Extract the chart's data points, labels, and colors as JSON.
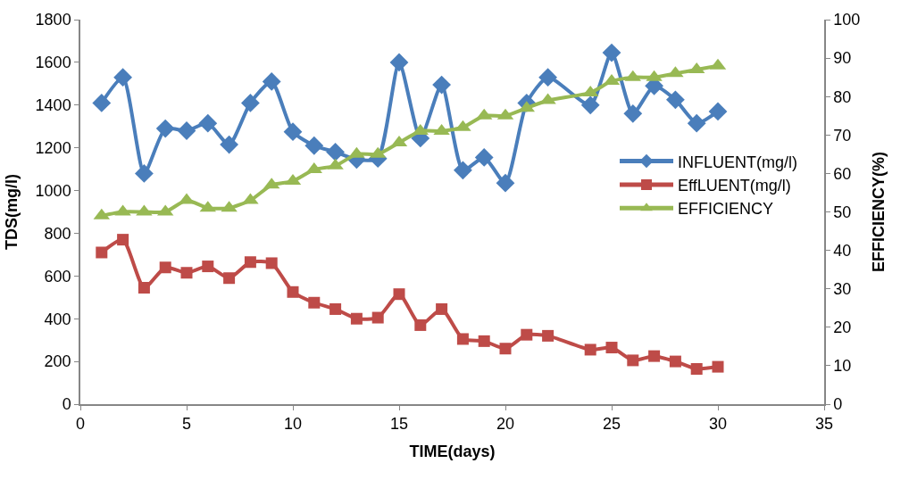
{
  "chart_data": {
    "type": "line",
    "xlabel": "TIME(days)",
    "ylabel": "TDS(mg/l)",
    "y2label": "EFFICIENCY(%)",
    "x": [
      1,
      2,
      3,
      4,
      5,
      6,
      7,
      8,
      9,
      10,
      11,
      12,
      13,
      14,
      15,
      16,
      17,
      18,
      19,
      20,
      21,
      22,
      24,
      25,
      26,
      27,
      28,
      29,
      30
    ],
    "series": [
      {
        "name": "INFLUENT(mg/l)",
        "color": "#4a7ebb",
        "marker": "diamond",
        "values": [
          1410,
          1530,
          1080,
          1290,
          1280,
          1315,
          1215,
          1410,
          1510,
          1275,
          1210,
          1180,
          1145,
          1150,
          1600,
          1245,
          1495,
          1095,
          1155,
          1035,
          1410,
          1530,
          1400,
          1645,
          1360,
          1490,
          1425,
          1315,
          1370
        ]
      },
      {
        "name": "EffLUENT(mg/l)",
        "color": "#be4b48",
        "marker": "square",
        "values": [
          710,
          770,
          545,
          640,
          615,
          645,
          590,
          665,
          660,
          525,
          475,
          445,
          400,
          405,
          515,
          370,
          445,
          305,
          295,
          260,
          325,
          320,
          255,
          265,
          205,
          225,
          200,
          165,
          175
        ]
      },
      {
        "name": "EFFICIENCY",
        "color": "#98b954",
        "marker": "triangle",
        "axis": "y2",
        "values": [
          49,
          50,
          50,
          50,
          53,
          51,
          51,
          53,
          57,
          58,
          61,
          62,
          65,
          65,
          68,
          71,
          71,
          72,
          75,
          75,
          77,
          79,
          81,
          84,
          85,
          85,
          86,
          87,
          88
        ]
      }
    ],
    "xlim": [
      0,
      35
    ],
    "xticks": [
      0,
      5,
      10,
      15,
      20,
      25,
      30,
      35
    ],
    "ylim": [
      0,
      1800
    ],
    "yticks": [
      0,
      200,
      400,
      600,
      800,
      1000,
      1200,
      1400,
      1600,
      1800
    ],
    "y2lim": [
      0,
      100
    ],
    "y2ticks": [
      0,
      10,
      20,
      30,
      40,
      50,
      60,
      70,
      80,
      90,
      100
    ],
    "legend": "right",
    "line_style": "solid"
  }
}
